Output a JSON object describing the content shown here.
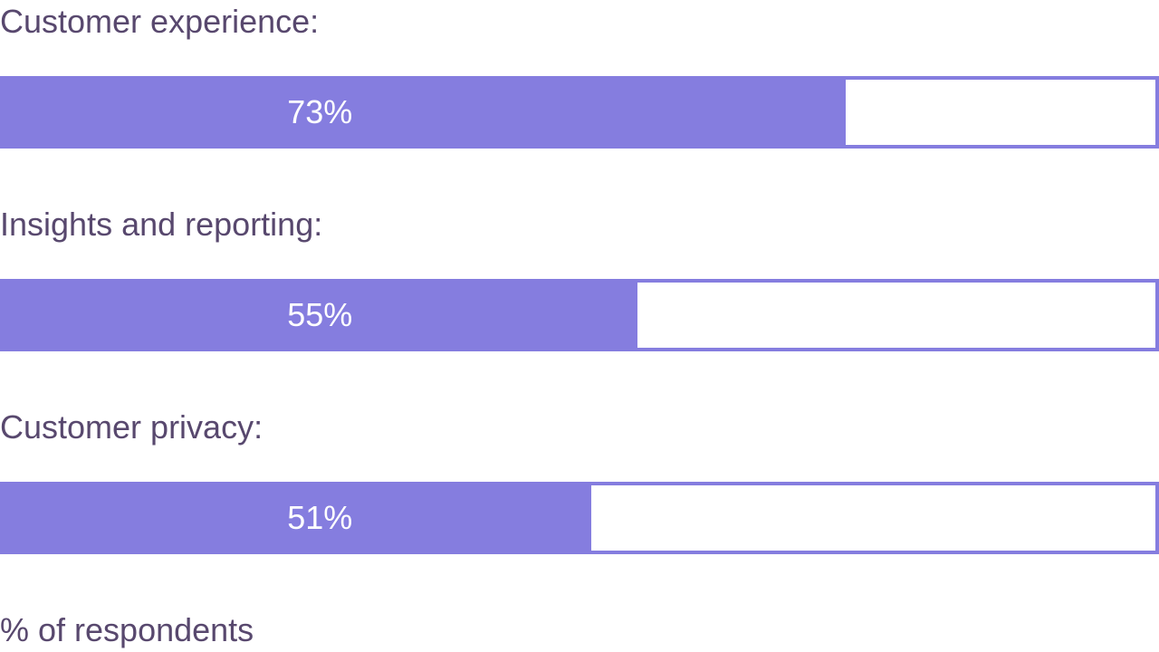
{
  "chart_data": {
    "type": "bar",
    "orientation": "horizontal",
    "categories": [
      "Customer experience:",
      "Insights and reporting:",
      "Customer privacy:"
    ],
    "values": [
      73,
      55,
      51
    ],
    "value_labels": [
      "73%",
      "55%",
      "51%"
    ],
    "xlim": [
      0,
      100
    ],
    "footer": "% of respondents",
    "colors": {
      "bar": "#857ddf",
      "label": "#58486e",
      "value_text": "#ffffff"
    }
  }
}
